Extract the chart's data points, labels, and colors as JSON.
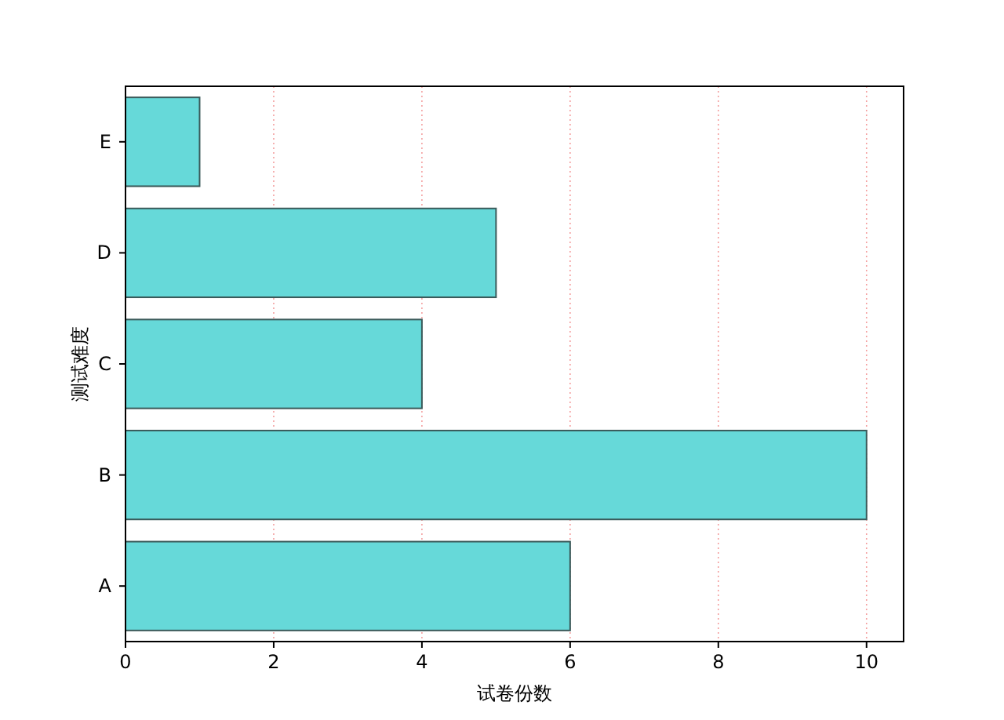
{
  "chart_data": {
    "type": "bar",
    "orientation": "horizontal",
    "xlabel": "试卷份数",
    "ylabel": "测试难度",
    "categories": [
      "E",
      "D",
      "C",
      "B",
      "A"
    ],
    "series": [
      {
        "color": "#66d9d9",
        "values": [
          1,
          5,
          4,
          10,
          6
        ]
      }
    ],
    "xlim": [
      0,
      10.5
    ],
    "xticks": [
      0,
      2,
      4,
      6,
      8,
      10
    ],
    "grid": "x"
  }
}
